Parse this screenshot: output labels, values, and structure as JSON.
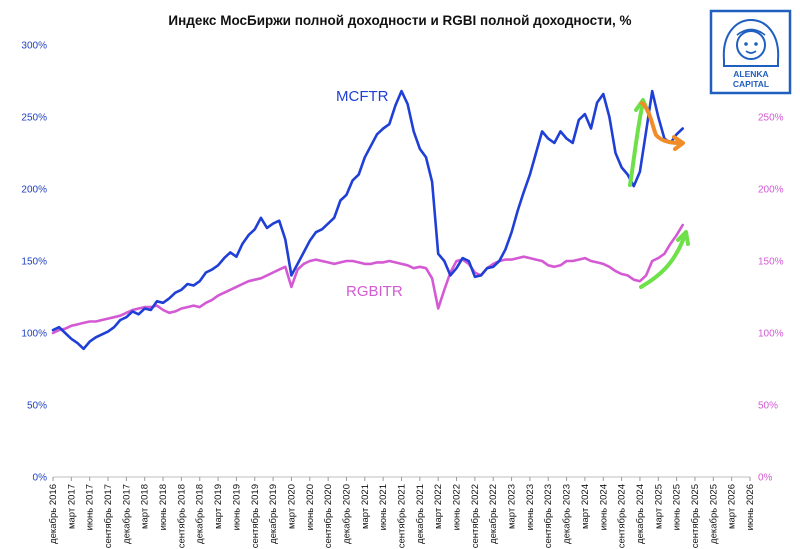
{
  "chart_data": {
    "type": "line",
    "title": "Индекс МосБиржи полной доходности и RGBI полной доходности, %",
    "ylim": [
      0,
      300
    ],
    "yticks_left": [
      "0%",
      "50%",
      "100%",
      "150%",
      "200%",
      "250%",
      "300%"
    ],
    "yticks_right": [
      "0%",
      "50%",
      "100%",
      "150%",
      "200%",
      "250%"
    ],
    "x_ticks": [
      "декабрь 2016",
      "март 2017",
      "июнь 2017",
      "сентябрь 2017",
      "декабрь 2017",
      "март 2018",
      "июнь 2018",
      "сентябрь 2018",
      "декабрь 2018",
      "март 2019",
      "июнь 2019",
      "сентябрь 2019",
      "декабрь 2019",
      "март 2020",
      "июнь 2020",
      "сентябрь 2020",
      "декабрь 2020",
      "март 2021",
      "июнь 2021",
      "сентябрь 2021",
      "декабрь 2021",
      "март 2022",
      "июнь 2022",
      "сентябрь 2022",
      "декабрь 2022",
      "март 2023",
      "июнь 2023",
      "сентябрь 2023",
      "декабрь 2023",
      "март 2024",
      "июнь 2024",
      "сентябрь 2024",
      "декабрь 2024",
      "март 2025",
      "июнь 2025",
      "сентябрь 2025",
      "декабрь 2025",
      "март 2026",
      "июнь 2026"
    ],
    "x_start": "2016-12",
    "series": [
      {
        "name": "MCFTR",
        "color": "#1f3fd6",
        "x": [
          "2016-12",
          "2017-01",
          "2017-02",
          "2017-03",
          "2017-04",
          "2017-05",
          "2017-06",
          "2017-07",
          "2017-08",
          "2017-09",
          "2017-10",
          "2017-11",
          "2017-12",
          "2018-01",
          "2018-02",
          "2018-03",
          "2018-04",
          "2018-05",
          "2018-06",
          "2018-07",
          "2018-08",
          "2018-09",
          "2018-10",
          "2018-11",
          "2018-12",
          "2019-01",
          "2019-02",
          "2019-03",
          "2019-04",
          "2019-05",
          "2019-06",
          "2019-07",
          "2019-08",
          "2019-09",
          "2019-10",
          "2019-11",
          "2019-12",
          "2020-01",
          "2020-02",
          "2020-03",
          "2020-04",
          "2020-05",
          "2020-06",
          "2020-07",
          "2020-08",
          "2020-09",
          "2020-10",
          "2020-11",
          "2020-12",
          "2021-01",
          "2021-02",
          "2021-03",
          "2021-04",
          "2021-05",
          "2021-06",
          "2021-07",
          "2021-08",
          "2021-09",
          "2021-10",
          "2021-11",
          "2021-12",
          "2022-01",
          "2022-02",
          "2022-03",
          "2022-04",
          "2022-05",
          "2022-06",
          "2022-07",
          "2022-08",
          "2022-09",
          "2022-10",
          "2022-11",
          "2022-12",
          "2023-01",
          "2023-02",
          "2023-03",
          "2023-04",
          "2023-05",
          "2023-06",
          "2023-07",
          "2023-08",
          "2023-09",
          "2023-10",
          "2023-11",
          "2023-12",
          "2024-01",
          "2024-02",
          "2024-03",
          "2024-04",
          "2024-05",
          "2024-06",
          "2024-07",
          "2024-08",
          "2024-09",
          "2024-10",
          "2024-11",
          "2024-12",
          "2025-01",
          "2025-02",
          "2025-03",
          "2025-04",
          "2025-05",
          "2025-06",
          "2025-07"
        ],
        "y": [
          102,
          104,
          100,
          96,
          93,
          89,
          94,
          97,
          99,
          101,
          104,
          109,
          111,
          115,
          113,
          117,
          116,
          122,
          121,
          124,
          128,
          130,
          134,
          133,
          136,
          142,
          144,
          147,
          152,
          156,
          153,
          162,
          168,
          172,
          180,
          173,
          176,
          178,
          165,
          140,
          148,
          156,
          164,
          170,
          172,
          176,
          180,
          192,
          196,
          206,
          210,
          222,
          230,
          238,
          242,
          245,
          258,
          268,
          259,
          240,
          228,
          222,
          205,
          155,
          150,
          140,
          145,
          152,
          150,
          139,
          140,
          145,
          146,
          150,
          158,
          170,
          185,
          198,
          210,
          225,
          240,
          235,
          232,
          240,
          235,
          232,
          248,
          252,
          242,
          260,
          266,
          250,
          225,
          215,
          210,
          202,
          212,
          240,
          268,
          250,
          235,
          232,
          238,
          242
        ]
      },
      {
        "name": "RGBITR",
        "color": "#d45ad4",
        "x": [
          "2016-12",
          "2017-01",
          "2017-02",
          "2017-03",
          "2017-04",
          "2017-05",
          "2017-06",
          "2017-07",
          "2017-08",
          "2017-09",
          "2017-10",
          "2017-11",
          "2017-12",
          "2018-01",
          "2018-02",
          "2018-03",
          "2018-04",
          "2018-05",
          "2018-06",
          "2018-07",
          "2018-08",
          "2018-09",
          "2018-10",
          "2018-11",
          "2018-12",
          "2019-01",
          "2019-02",
          "2019-03",
          "2019-04",
          "2019-05",
          "2019-06",
          "2019-07",
          "2019-08",
          "2019-09",
          "2019-10",
          "2019-11",
          "2019-12",
          "2020-01",
          "2020-02",
          "2020-03",
          "2020-04",
          "2020-05",
          "2020-06",
          "2020-07",
          "2020-08",
          "2020-09",
          "2020-10",
          "2020-11",
          "2020-12",
          "2021-01",
          "2021-02",
          "2021-03",
          "2021-04",
          "2021-05",
          "2021-06",
          "2021-07",
          "2021-08",
          "2021-09",
          "2021-10",
          "2021-11",
          "2021-12",
          "2022-01",
          "2022-02",
          "2022-03",
          "2022-04",
          "2022-05",
          "2022-06",
          "2022-07",
          "2022-08",
          "2022-09",
          "2022-10",
          "2022-11",
          "2022-12",
          "2023-01",
          "2023-02",
          "2023-03",
          "2023-04",
          "2023-05",
          "2023-06",
          "2023-07",
          "2023-08",
          "2023-09",
          "2023-10",
          "2023-11",
          "2023-12",
          "2024-01",
          "2024-02",
          "2024-03",
          "2024-04",
          "2024-05",
          "2024-06",
          "2024-07",
          "2024-08",
          "2024-09",
          "2024-10",
          "2024-11",
          "2024-12",
          "2025-01",
          "2025-02",
          "2025-03",
          "2025-04",
          "2025-05",
          "2025-06",
          "2025-07"
        ],
        "y": [
          100,
          102,
          103,
          105,
          106,
          107,
          108,
          108,
          109,
          110,
          111,
          112,
          114,
          116,
          117,
          118,
          118,
          119,
          116,
          114,
          115,
          117,
          118,
          119,
          118,
          121,
          123,
          126,
          128,
          130,
          132,
          134,
          136,
          137,
          138,
          140,
          142,
          144,
          146,
          132,
          144,
          148,
          150,
          151,
          150,
          149,
          148,
          149,
          150,
          150,
          149,
          148,
          148,
          149,
          149,
          150,
          149,
          148,
          147,
          145,
          146,
          145,
          138,
          117,
          130,
          142,
          150,
          151,
          148,
          142,
          140,
          145,
          148,
          150,
          151,
          151,
          152,
          153,
          152,
          151,
          150,
          147,
          146,
          147,
          150,
          150,
          151,
          152,
          150,
          149,
          148,
          146,
          143,
          141,
          140,
          137,
          136,
          140,
          150,
          152,
          155,
          162,
          168,
          175
        ]
      }
    ],
    "annotations": [
      "MCFTR",
      "RGBITR"
    ],
    "logo_text": [
      "ALENKA",
      "CAPITAL"
    ]
  }
}
